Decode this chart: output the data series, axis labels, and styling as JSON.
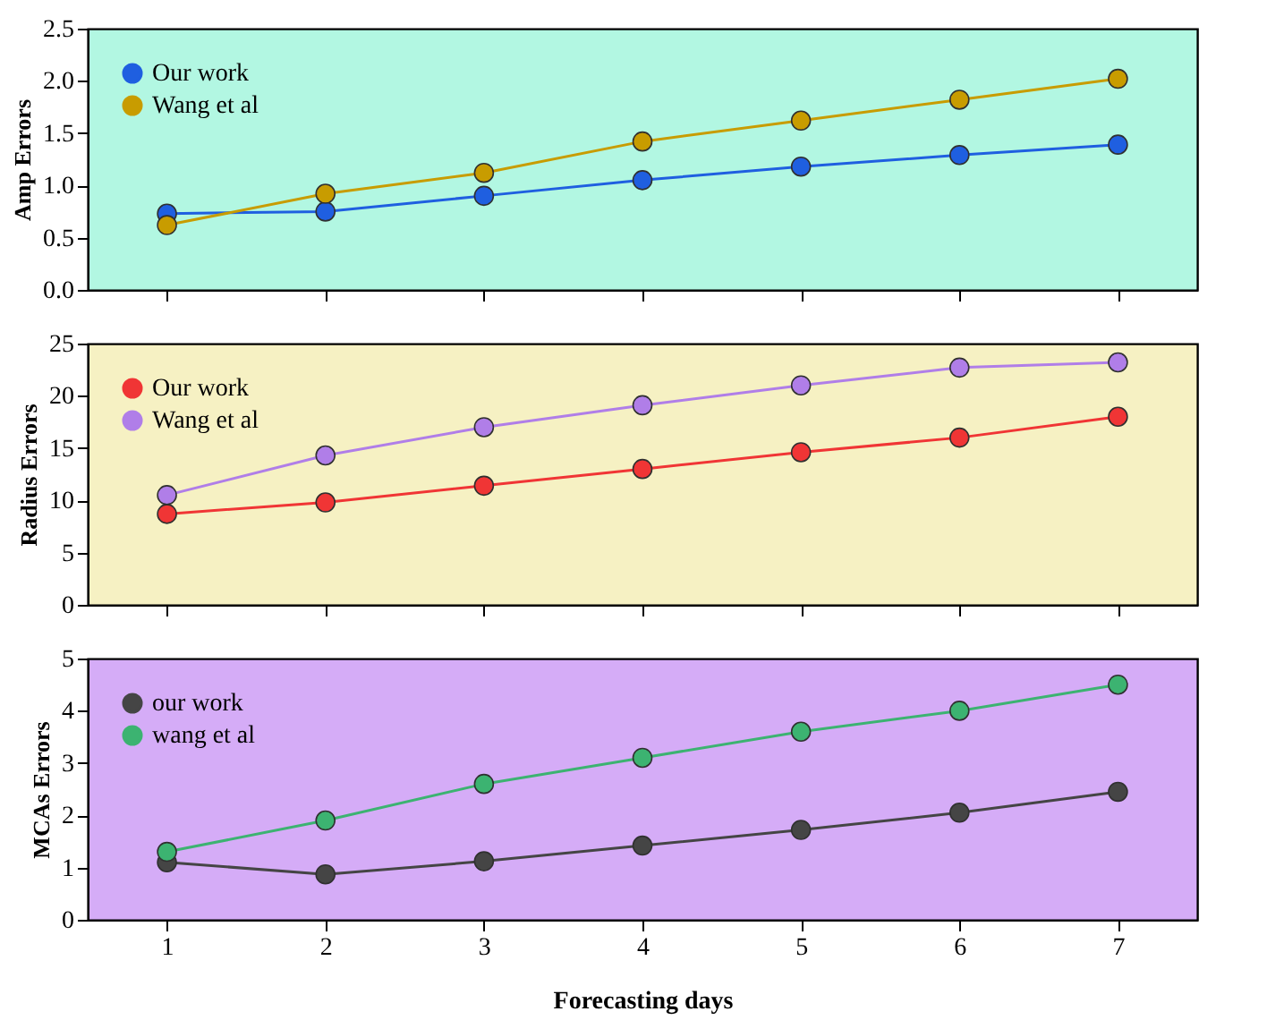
{
  "chart_data": [
    {
      "type": "line",
      "ylabel": "Amp Errors",
      "x": [
        1,
        2,
        3,
        4,
        5,
        6,
        7
      ],
      "xlim": [
        0.5,
        7.5
      ],
      "xticks": [
        1,
        2,
        3,
        4,
        5,
        6,
        7
      ],
      "ylim": [
        0,
        2.5
      ],
      "yticks": [
        {
          "value": 0,
          "label": "0.0"
        },
        {
          "value": 0.5,
          "label": "0.5"
        },
        {
          "value": 1,
          "label": "1.0"
        },
        {
          "value": 1.5,
          "label": "1.5"
        },
        {
          "value": 2,
          "label": "2.0"
        },
        {
          "value": 2.5,
          "label": "2.5"
        }
      ],
      "tick_labels": "y",
      "marker": "circle",
      "legend": "top left",
      "grid": false,
      "series": [
        {
          "name": "Our work",
          "color": "#1f5fe0",
          "values": [
            0.73,
            0.75,
            0.9,
            1.05,
            1.18,
            1.29,
            1.39
          ]
        },
        {
          "name": "Wang et al",
          "color": "#c89c00",
          "values": [
            0.62,
            0.92,
            1.12,
            1.42,
            1.62,
            1.82,
            2.02
          ]
        }
      ]
    },
    {
      "type": "line",
      "ylabel": "Radius Errors",
      "x": [
        1,
        2,
        3,
        4,
        5,
        6,
        7
      ],
      "xlim": [
        0.5,
        7.5
      ],
      "xticks": [
        1,
        2,
        3,
        4,
        5,
        6,
        7
      ],
      "ylim": [
        0,
        25
      ],
      "yticks": [
        0,
        5,
        10,
        15,
        20,
        25
      ],
      "tick_labels": "y",
      "marker": "circle",
      "legend": "top left",
      "grid": false,
      "series": [
        {
          "name": "Our work",
          "color": "#f03535",
          "values": [
            8.7,
            9.8,
            11.4,
            13.0,
            14.6,
            16.0,
            18.0
          ]
        },
        {
          "name": "Wang et al",
          "color": "#b07ee8",
          "values": [
            10.5,
            14.3,
            17.0,
            19.1,
            21.0,
            22.7,
            23.2
          ]
        }
      ]
    },
    {
      "type": "line",
      "xlabel": "Forecasting days",
      "ylabel": "MCAs Errors",
      "x": [
        1,
        2,
        3,
        4,
        5,
        6,
        7
      ],
      "xlim": [
        0.5,
        7.5
      ],
      "xticks": [
        1,
        2,
        3,
        4,
        5,
        6,
        7
      ],
      "ylim": [
        0,
        5
      ],
      "yticks": [
        0,
        1,
        2,
        3,
        4,
        5
      ],
      "marker": "circle",
      "legend": "top left",
      "grid": false,
      "series": [
        {
          "name": "our work",
          "color": "#454545",
          "values": [
            1.1,
            0.87,
            1.12,
            1.42,
            1.72,
            2.05,
            2.45
          ]
        },
        {
          "name": "wang et al",
          "color": "#3cb371",
          "values": [
            1.3,
            1.9,
            2.6,
            3.1,
            3.6,
            4.0,
            4.5
          ]
        }
      ]
    }
  ]
}
